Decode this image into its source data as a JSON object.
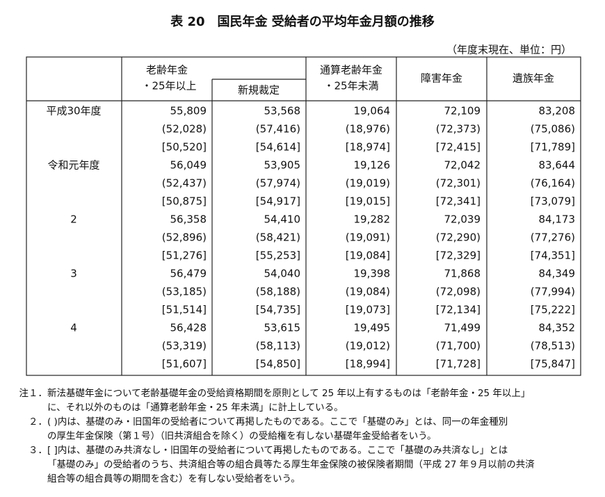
{
  "title": "表 20　国民年金 受給者の平均年金月額の推移",
  "unit": "（年度末現在、単位：円）",
  "table": {
    "header": {
      "old_age": [
        "老齢年金",
        "・25年以上"
      ],
      "new_award": "新規裁定",
      "tsusan": [
        "通算老齢年金",
        "・25年未満"
      ],
      "disability": "障害年金",
      "survivor": "遺族年金"
    },
    "years": [
      {
        "label": "平成30年度",
        "rows": [
          [
            "55,809",
            "53,568",
            "19,064",
            "72,109",
            "83,208"
          ],
          [
            "(52,028)",
            "(57,416)",
            "(18,976)",
            "(72,373)",
            "(75,086)"
          ],
          [
            "[50,520]",
            "[54,614]",
            "[18,974]",
            "[72,415]",
            "[71,789]"
          ]
        ]
      },
      {
        "label": "令和元年度",
        "rows": [
          [
            "56,049",
            "53,905",
            "19,126",
            "72,042",
            "83,644"
          ],
          [
            "(52,437)",
            "(57,974)",
            "(19,019)",
            "(72,301)",
            "(76,164)"
          ],
          [
            "[50,875]",
            "[54,917]",
            "[19,015]",
            "[72,341]",
            "[73,079]"
          ]
        ]
      },
      {
        "label": "2",
        "rows": [
          [
            "56,358",
            "54,410",
            "19,282",
            "72,039",
            "84,173"
          ],
          [
            "(52,896)",
            "(58,421)",
            "(19,091)",
            "(72,290)",
            "(77,276)"
          ],
          [
            "[51,276]",
            "[55,253]",
            "[19,084]",
            "[72,329]",
            "[74,351]"
          ]
        ]
      },
      {
        "label": "3",
        "rows": [
          [
            "56,479",
            "54,040",
            "19,398",
            "71,868",
            "84,349"
          ],
          [
            "(53,185)",
            "(58,188)",
            "(19,084)",
            "(72,098)",
            "(77,994)"
          ],
          [
            "[51,514]",
            "[54,735]",
            "[19,073]",
            "[72,134]",
            "[75,222]"
          ]
        ]
      },
      {
        "label": "4",
        "rows": [
          [
            "56,428",
            "53,615",
            "19,495",
            "71,499",
            "84,352"
          ],
          [
            "(53,319)",
            "(58,113)",
            "(19,012)",
            "(71,700)",
            "(78,513)"
          ],
          [
            "[51,607]",
            "[54,850]",
            "[18,994]",
            "[71,728]",
            "[75,847]"
          ]
        ]
      }
    ]
  },
  "notes": [
    {
      "marker": "注１．",
      "lines": [
        "新法基礎年金について老齢基礎年金の受給資格期間を原則として 25 年以上有するものは「老齢年金・25 年以上」",
        "に、それ以外のものは「通算老齢年金・25 年未満」に計上している。"
      ]
    },
    {
      "marker": "２．",
      "lines": [
        "(  )内は、基礎のみ・旧国年の受給者について再掲したものである。ここで「基礎のみ」とは、同一の年金種別",
        "の厚生年金保険（第１号）（旧共済組合を除く）の受給権を有しない基礎年金受給者をいう。"
      ]
    },
    {
      "marker": "３．",
      "lines": [
        "[  ]内は、基礎のみ共済なし・旧国年の受給者について再掲したものである。ここで「基礎のみ共済なし」とは",
        "「基礎のみ」の受給者のうち、共済組合等の組合員等たる厚生年金保険の被保険者期間（平成 27 年９月以前の共済",
        "組合等の組合員等の期間を含む）を有しない受給者をいう。"
      ]
    }
  ]
}
